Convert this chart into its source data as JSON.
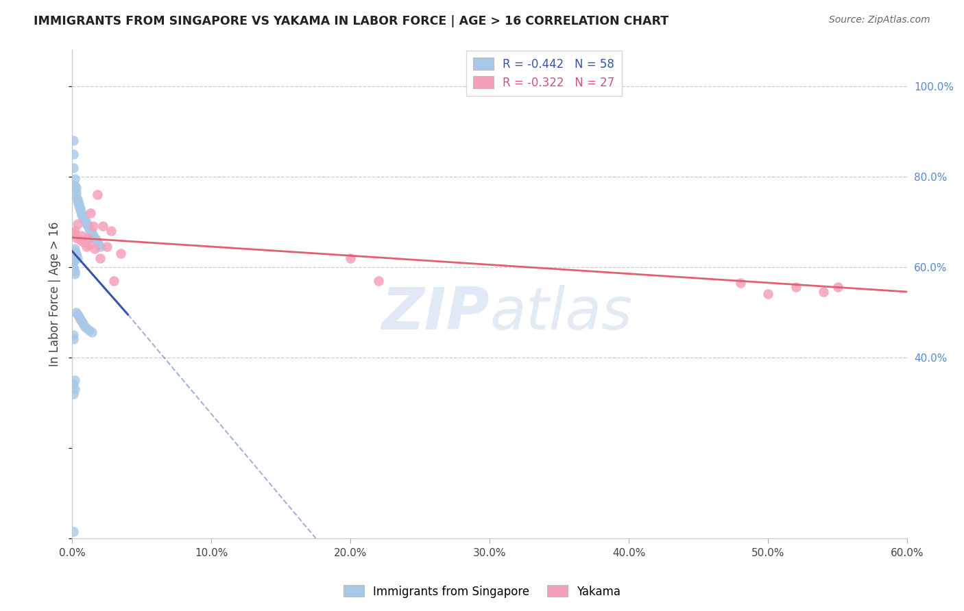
{
  "title": "IMMIGRANTS FROM SINGAPORE VS YAKAMA IN LABOR FORCE | AGE > 16 CORRELATION CHART",
  "source": "Source: ZipAtlas.com",
  "ylabel": "In Labor Force | Age > 16",
  "xlim": [
    0.0,
    0.6
  ],
  "ylim": [
    0.0,
    1.08
  ],
  "yticks_right": [
    0.4,
    0.6,
    0.8,
    1.0
  ],
  "ytick_labels_right": [
    "40.0%",
    "60.0%",
    "80.0%",
    "100.0%"
  ],
  "xticks": [
    0.0,
    0.1,
    0.2,
    0.3,
    0.4,
    0.5,
    0.6
  ],
  "xtick_labels": [
    "0.0%",
    "10.0%",
    "20.0%",
    "30.0%",
    "40.0%",
    "50.0%",
    "60.0%"
  ],
  "grid_color": "#cccccc",
  "background_color": "#ffffff",
  "watermark_zip": "ZIP",
  "watermark_atlas": "atlas",
  "legend_r1_val": "-0.442",
  "legend_n1_val": "58",
  "legend_r2_val": "-0.322",
  "legend_n2_val": "27",
  "color_singapore": "#a8c8e8",
  "color_yakama": "#f4a0b8",
  "color_singapore_line": "#3355aa",
  "color_yakama_line": "#e06070",
  "singapore_points_x": [
    0.001,
    0.001,
    0.001,
    0.002,
    0.002,
    0.003,
    0.003,
    0.003,
    0.004,
    0.004,
    0.005,
    0.005,
    0.006,
    0.006,
    0.007,
    0.007,
    0.008,
    0.009,
    0.01,
    0.01,
    0.011,
    0.012,
    0.013,
    0.014,
    0.015,
    0.016,
    0.017,
    0.018,
    0.019,
    0.02,
    0.002,
    0.002,
    0.003,
    0.003,
    0.004,
    0.001,
    0.001,
    0.001,
    0.001,
    0.002,
    0.002,
    0.003,
    0.004,
    0.005,
    0.006,
    0.007,
    0.008,
    0.009,
    0.01,
    0.012,
    0.014,
    0.001,
    0.001,
    0.001,
    0.001,
    0.001,
    0.002,
    0.002
  ],
  "singapore_points_y": [
    0.88,
    0.85,
    0.82,
    0.795,
    0.78,
    0.775,
    0.765,
    0.755,
    0.75,
    0.745,
    0.74,
    0.735,
    0.73,
    0.725,
    0.72,
    0.715,
    0.71,
    0.705,
    0.7,
    0.695,
    0.69,
    0.685,
    0.68,
    0.675,
    0.67,
    0.665,
    0.66,
    0.655,
    0.65,
    0.645,
    0.64,
    0.635,
    0.63,
    0.625,
    0.62,
    0.615,
    0.61,
    0.6,
    0.595,
    0.59,
    0.585,
    0.5,
    0.495,
    0.49,
    0.485,
    0.48,
    0.475,
    0.47,
    0.465,
    0.46,
    0.455,
    0.45,
    0.44,
    0.34,
    0.32,
    0.015,
    0.35,
    0.33
  ],
  "yakama_points_x": [
    0.001,
    0.002,
    0.003,
    0.004,
    0.006,
    0.007,
    0.008,
    0.01,
    0.011,
    0.012,
    0.013,
    0.015,
    0.016,
    0.018,
    0.02,
    0.022,
    0.025,
    0.028,
    0.03,
    0.035,
    0.2,
    0.22,
    0.48,
    0.5,
    0.52,
    0.54,
    0.55
  ],
  "yakama_points_y": [
    0.675,
    0.68,
    0.665,
    0.695,
    0.66,
    0.67,
    0.655,
    0.645,
    0.665,
    0.65,
    0.72,
    0.69,
    0.64,
    0.76,
    0.62,
    0.69,
    0.645,
    0.68,
    0.57,
    0.63,
    0.62,
    0.57,
    0.565,
    0.54,
    0.555,
    0.545,
    0.555
  ],
  "sg_trend_x0": 0.0,
  "sg_trend_y0": 0.635,
  "sg_trend_x1": 0.04,
  "sg_trend_y1": 0.495,
  "sg_trend_ext_x1": 0.04,
  "sg_trend_ext_y1": 0.495,
  "sg_trend_ext_x2": 0.175,
  "sg_trend_ext_y2": 0.0,
  "yk_trend_x0": 0.0,
  "yk_trend_y0": 0.665,
  "yk_trend_x1": 0.6,
  "yk_trend_y1": 0.545
}
